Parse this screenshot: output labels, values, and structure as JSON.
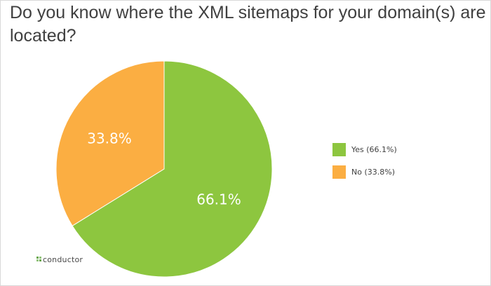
{
  "chart_data": {
    "type": "pie",
    "title": "Do you know where the XML sitemaps for your domain(s) are located?",
    "slices": [
      {
        "label": "Yes (66.1%)",
        "value": 66.1,
        "display": "66.1%",
        "color": "#8dc63f"
      },
      {
        "label": "No (33.8%)",
        "value": 33.8,
        "display": "33.8%",
        "color": "#fbae42"
      }
    ],
    "legend_position": "right",
    "start_angle_deg": 0,
    "direction": "clockwise"
  },
  "logo": {
    "text": "conductor"
  }
}
